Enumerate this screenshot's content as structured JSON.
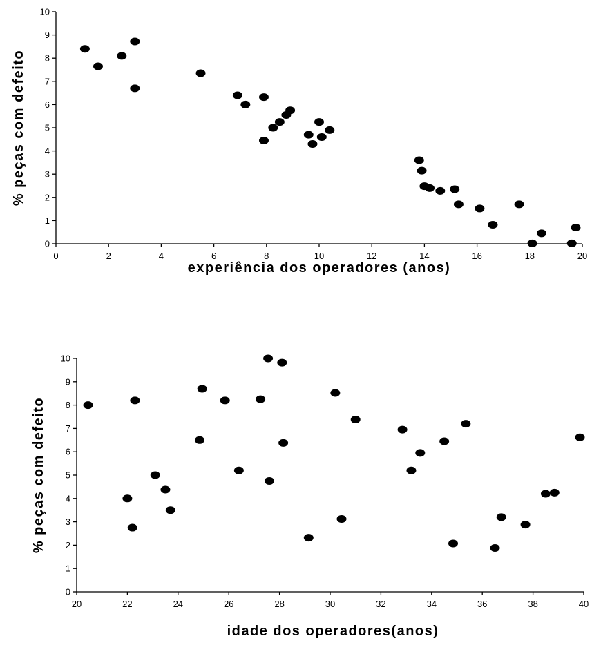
{
  "chart_data": [
    {
      "type": "scatter",
      "title": "",
      "xlabel": "experiência dos operadores (anos)",
      "ylabel": "% peças com defeito",
      "xlim": [
        0,
        20
      ],
      "ylim": [
        0,
        10
      ],
      "xticks": [
        0,
        2,
        4,
        6,
        8,
        10,
        12,
        14,
        16,
        18,
        20
      ],
      "yticks": [
        0,
        1,
        2,
        3,
        4,
        5,
        6,
        7,
        8,
        9,
        10
      ],
      "grid": false,
      "legend": "none",
      "series": [
        {
          "color": "#000000",
          "points": [
            [
              1.1,
              8.4
            ],
            [
              1.6,
              7.65
            ],
            [
              2.5,
              8.1
            ],
            [
              3.0,
              8.72
            ],
            [
              3.0,
              6.7
            ],
            [
              5.5,
              7.35
            ],
            [
              6.9,
              6.4
            ],
            [
              7.2,
              6.0
            ],
            [
              7.9,
              6.32
            ],
            [
              7.9,
              4.45
            ],
            [
              8.25,
              5.0
            ],
            [
              8.5,
              5.25
            ],
            [
              8.75,
              5.55
            ],
            [
              8.9,
              5.75
            ],
            [
              9.6,
              4.7
            ],
            [
              9.75,
              4.3
            ],
            [
              10.0,
              5.25
            ],
            [
              10.1,
              4.6
            ],
            [
              10.4,
              4.9
            ],
            [
              13.8,
              3.6
            ],
            [
              13.9,
              3.15
            ],
            [
              14.0,
              2.48
            ],
            [
              14.2,
              2.4
            ],
            [
              14.6,
              2.28
            ],
            [
              15.15,
              2.35
            ],
            [
              15.3,
              1.7
            ],
            [
              16.1,
              1.52
            ],
            [
              16.6,
              0.82
            ],
            [
              17.6,
              1.7
            ],
            [
              18.1,
              0.02
            ],
            [
              18.45,
              0.45
            ],
            [
              19.6,
              0.02
            ],
            [
              19.75,
              0.7
            ]
          ]
        }
      ]
    },
    {
      "type": "scatter",
      "title": "",
      "xlabel": "idade dos operadores(anos)",
      "ylabel": "% peças com defeito",
      "xlim": [
        20,
        40
      ],
      "ylim": [
        0,
        10
      ],
      "xticks": [
        20,
        22,
        24,
        26,
        28,
        30,
        32,
        34,
        36,
        38,
        40
      ],
      "yticks": [
        0,
        1,
        2,
        3,
        4,
        5,
        6,
        7,
        8,
        9,
        10
      ],
      "grid": false,
      "legend": "none",
      "series": [
        {
          "color": "#000000",
          "points": [
            [
              20.45,
              8.0
            ],
            [
              22.0,
              4.0
            ],
            [
              22.2,
              2.75
            ],
            [
              22.3,
              8.2
            ],
            [
              23.1,
              5.0
            ],
            [
              23.5,
              4.38
            ],
            [
              23.7,
              3.5
            ],
            [
              24.85,
              6.5
            ],
            [
              24.95,
              8.7
            ],
            [
              25.85,
              8.2
            ],
            [
              26.4,
              5.2
            ],
            [
              27.25,
              8.25
            ],
            [
              27.55,
              10.0
            ],
            [
              27.6,
              4.75
            ],
            [
              28.1,
              9.82
            ],
            [
              28.15,
              6.38
            ],
            [
              29.15,
              2.32
            ],
            [
              30.2,
              8.52
            ],
            [
              30.45,
              3.12
            ],
            [
              31.0,
              7.38
            ],
            [
              32.85,
              6.95
            ],
            [
              33.2,
              5.2
            ],
            [
              33.55,
              5.95
            ],
            [
              34.5,
              6.45
            ],
            [
              34.85,
              2.07
            ],
            [
              35.35,
              7.2
            ],
            [
              36.5,
              1.88
            ],
            [
              36.75,
              3.2
            ],
            [
              37.7,
              2.88
            ],
            [
              38.5,
              4.2
            ],
            [
              38.85,
              4.25
            ],
            [
              39.85,
              6.62
            ]
          ]
        }
      ]
    }
  ]
}
